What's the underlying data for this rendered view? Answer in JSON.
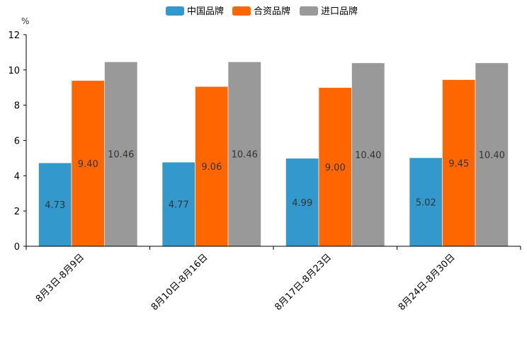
{
  "chart_data": {
    "type": "bar",
    "title": "",
    "xlabel": "",
    "ylabel": "%",
    "ylim": [
      0,
      12
    ],
    "yticks": [
      0,
      2,
      4,
      6,
      8,
      10,
      12
    ],
    "grid": false,
    "legend_position": "top-center",
    "categories": [
      "8月3日-8月9日",
      "8月10日-8月16日",
      "8月17日-8月23日",
      "8月24日-8月30日"
    ],
    "series": [
      {
        "name": "中国品牌",
        "color": "#3399cc",
        "values": [
          4.73,
          4.77,
          4.99,
          5.02
        ],
        "labels": [
          "4.73",
          "4.77",
          "4.99",
          "5.02"
        ]
      },
      {
        "name": "合资品牌",
        "color": "#ff6600",
        "values": [
          9.4,
          9.06,
          9.0,
          9.45
        ],
        "labels": [
          "9.40",
          "9.06",
          "9.00",
          "9.45"
        ]
      },
      {
        "name": "进口品牌",
        "color": "#999999",
        "values": [
          10.46,
          10.46,
          10.4,
          10.4
        ],
        "labels": [
          "10.46",
          "10.46",
          "10.40",
          "10.40"
        ]
      }
    ]
  }
}
